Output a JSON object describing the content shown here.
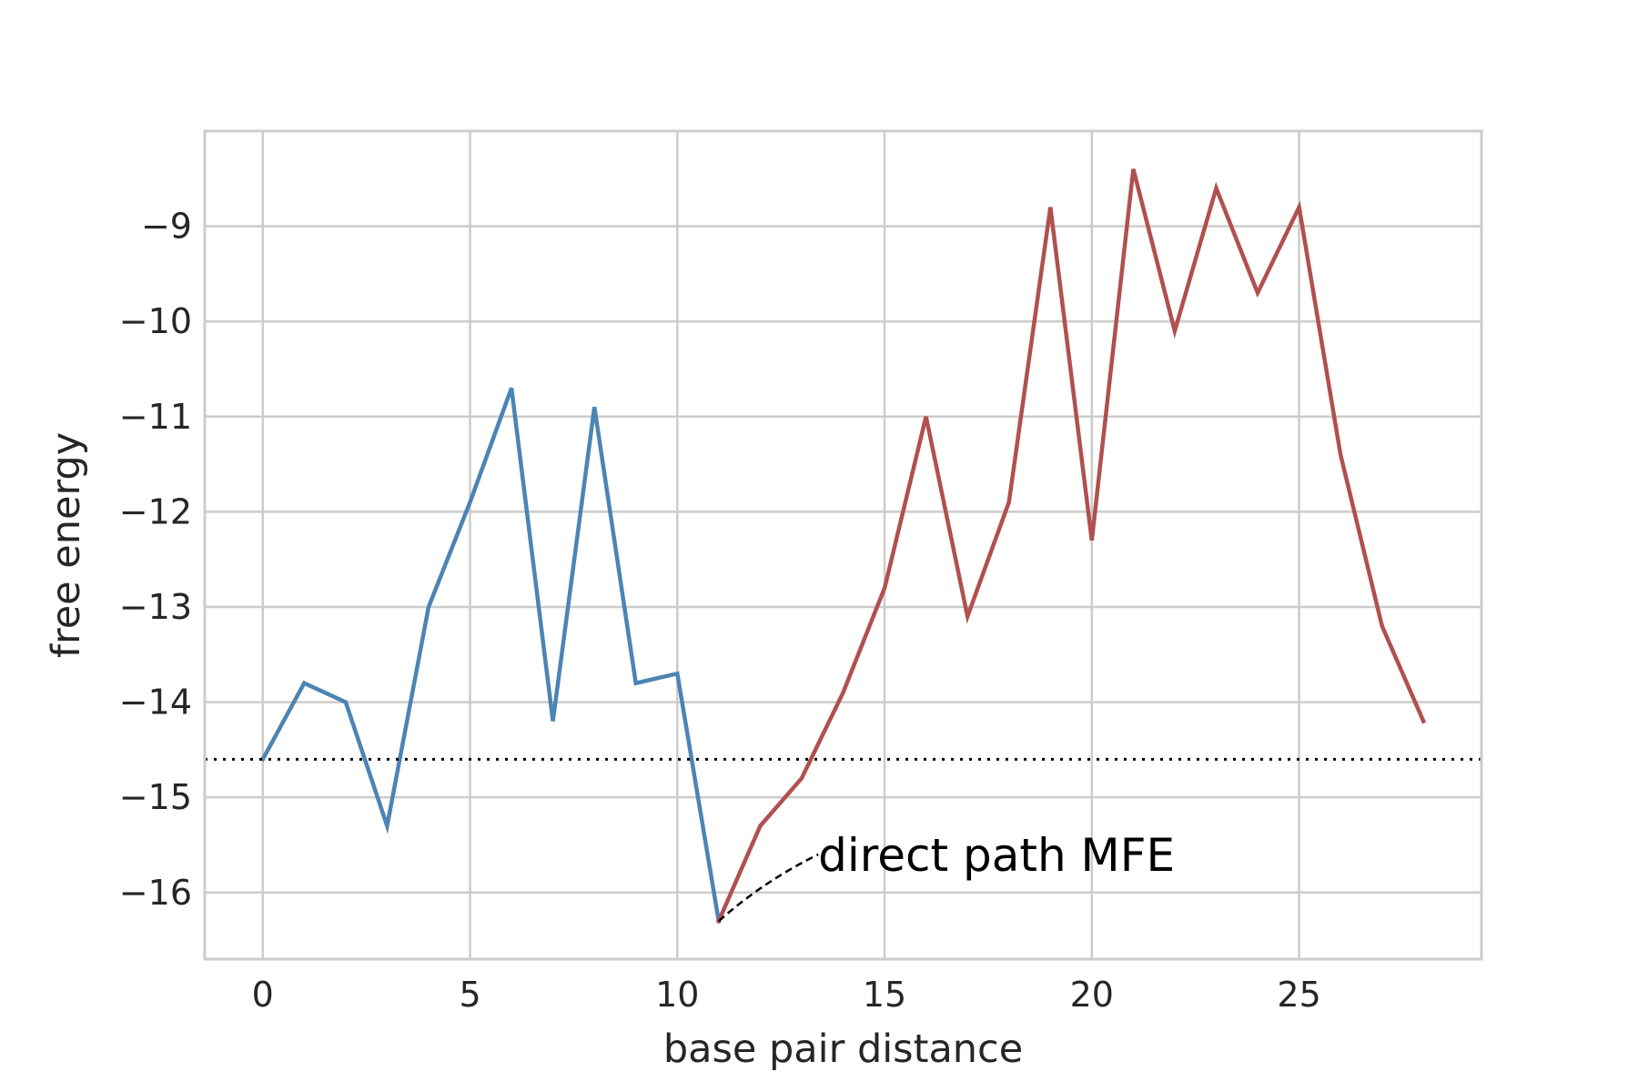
{
  "chart_data": {
    "type": "line",
    "xlabel": "base pair distance",
    "ylabel": "free energy",
    "xlim": [
      -1.4,
      29.4
    ],
    "ylim": [
      -16.7,
      -8.0
    ],
    "xticks": [
      0,
      5,
      10,
      15,
      20,
      25
    ],
    "yticks": [
      -16,
      -15,
      -14,
      -13,
      -12,
      -11,
      -10,
      -9
    ],
    "grid": true,
    "series": [
      {
        "color": "#4c84b4",
        "x": [
          0,
          1,
          2,
          3,
          4,
          5,
          6,
          7,
          8,
          9,
          10,
          11
        ],
        "y": [
          -14.6,
          -13.8,
          -14.0,
          -15.3,
          -13.0,
          -11.9,
          -10.7,
          -14.2,
          -10.9,
          -13.8,
          -13.7,
          -16.3
        ]
      },
      {
        "color": "#b05050",
        "x": [
          11,
          12,
          13,
          14,
          15,
          16,
          17,
          18,
          19,
          20,
          21,
          22,
          23,
          24,
          25,
          26,
          27,
          28
        ],
        "y": [
          -16.3,
          -15.3,
          -14.8,
          -13.9,
          -12.8,
          -11.0,
          -13.1,
          -11.9,
          -8.8,
          -12.3,
          -8.4,
          -10.1,
          -8.6,
          -9.7,
          -8.8,
          -11.4,
          -13.2,
          -14.2
        ]
      }
    ],
    "reference_line": {
      "y": -14.6,
      "style": "dotted",
      "color": "#000000"
    },
    "annotation": {
      "text": "direct path MFE",
      "point": [
        11,
        -16.3
      ],
      "text_anchor": [
        13.4,
        -15.6
      ],
      "style": "dashed"
    }
  }
}
